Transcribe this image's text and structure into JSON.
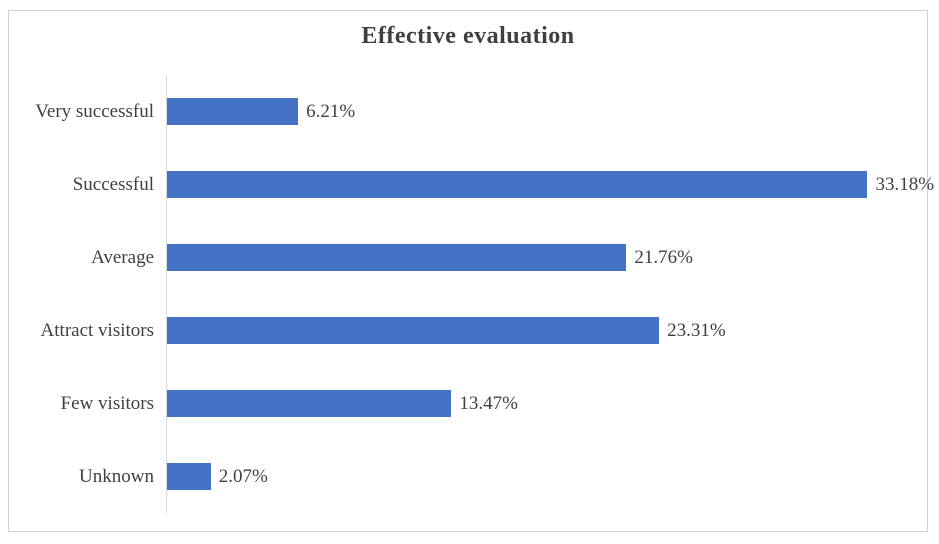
{
  "window": {
    "background": "#ffffff",
    "frame_border_color": "#d3d3d3"
  },
  "chart_data": {
    "type": "bar",
    "orientation": "horizontal",
    "title": "Effective evaluation",
    "categories": [
      "Very successful",
      "Successful",
      "Average",
      "Attract visitors",
      "Few visitors",
      "Unknown"
    ],
    "values": [
      6.21,
      33.18,
      21.76,
      23.31,
      13.47,
      2.07
    ],
    "data_labels": [
      "6.21%",
      "33.18%",
      "21.76%",
      "23.31%",
      "13.47%",
      "2.07%"
    ],
    "xlabel": "",
    "ylabel": "",
    "xlim": [
      0,
      36
    ],
    "grid": false,
    "legend": false,
    "bar_color": "#4472c4",
    "axis_line_color": "#d9d9d9",
    "title_color": "#3f3f3f",
    "label_color": "#404040"
  }
}
